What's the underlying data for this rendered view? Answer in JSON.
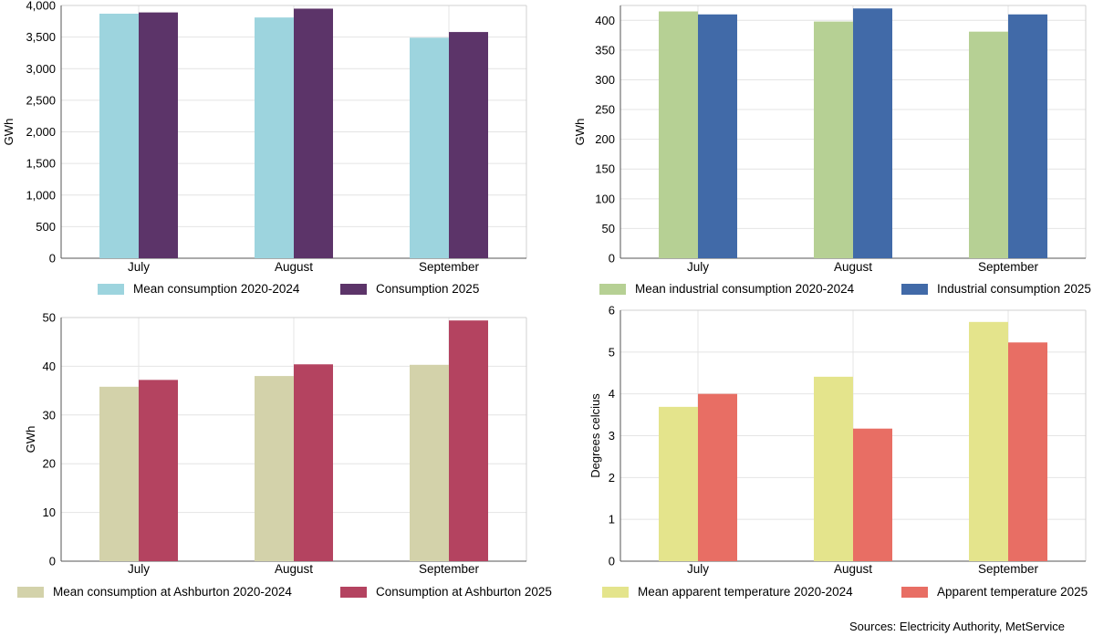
{
  "chart_data": [
    {
      "type": "bar",
      "ylabel": "GWh",
      "categories": [
        "July",
        "August",
        "September"
      ],
      "ylim": [
        0,
        4000
      ],
      "yticks": [
        "0",
        "500",
        "1,000",
        "1,500",
        "2,000",
        "2,500",
        "3,000",
        "3,500",
        "4,000"
      ],
      "grid": true,
      "legend_position": "bottom",
      "series": [
        {
          "name": "Mean consumption 2020-2024",
          "values": [
            3870,
            3810,
            3490
          ],
          "color": "#9dd4de"
        },
        {
          "name": "Consumption 2025",
          "values": [
            3890,
            3950,
            3580
          ],
          "color": "#5c3469"
        }
      ]
    },
    {
      "type": "bar",
      "ylabel": "GWh",
      "categories": [
        "July",
        "August",
        "September"
      ],
      "ylim": [
        0,
        425
      ],
      "yticks": [
        "0",
        "50",
        "100",
        "150",
        "200",
        "250",
        "300",
        "350",
        "400"
      ],
      "grid": true,
      "legend_position": "bottom",
      "series": [
        {
          "name": "Mean industrial consumption 2020-2024",
          "values": [
            415,
            398,
            381
          ],
          "color": "#b6d094"
        },
        {
          "name": "Industrial consumption 2025",
          "values": [
            410,
            420,
            410
          ],
          "color": "#416aa8"
        }
      ]
    },
    {
      "type": "bar",
      "ylabel": "GWh",
      "categories": [
        "July",
        "August",
        "September"
      ],
      "ylim": [
        0,
        50
      ],
      "yticks": [
        "0",
        "10",
        "20",
        "30",
        "40",
        "50"
      ],
      "grid": true,
      "legend_position": "bottom",
      "series": [
        {
          "name": "Mean consumption at Ashburton 2020-2024",
          "values": [
            35.8,
            38.0,
            40.3
          ],
          "color": "#d3d2aa"
        },
        {
          "name": "Consumption at Ashburton 2025",
          "values": [
            37.2,
            40.4,
            49.4
          ],
          "color": "#b44360"
        }
      ]
    },
    {
      "type": "bar",
      "ylabel": "Degrees celcius",
      "categories": [
        "July",
        "August",
        "September"
      ],
      "ylim": [
        0,
        6
      ],
      "yticks": [
        "0",
        "1",
        "2",
        "3",
        "4",
        "5",
        "6"
      ],
      "grid": true,
      "legend_position": "bottom",
      "series": [
        {
          "name": "Mean apparent temperature 2020-2024",
          "values": [
            3.69,
            4.41,
            5.72
          ],
          "color": "#e4e48c"
        },
        {
          "name": "Apparent temperature 2025",
          "values": [
            4.0,
            3.17,
            5.23
          ],
          "color": "#e86e64"
        }
      ]
    }
  ],
  "source_text": "Sources: Electricity Authority, MetService"
}
